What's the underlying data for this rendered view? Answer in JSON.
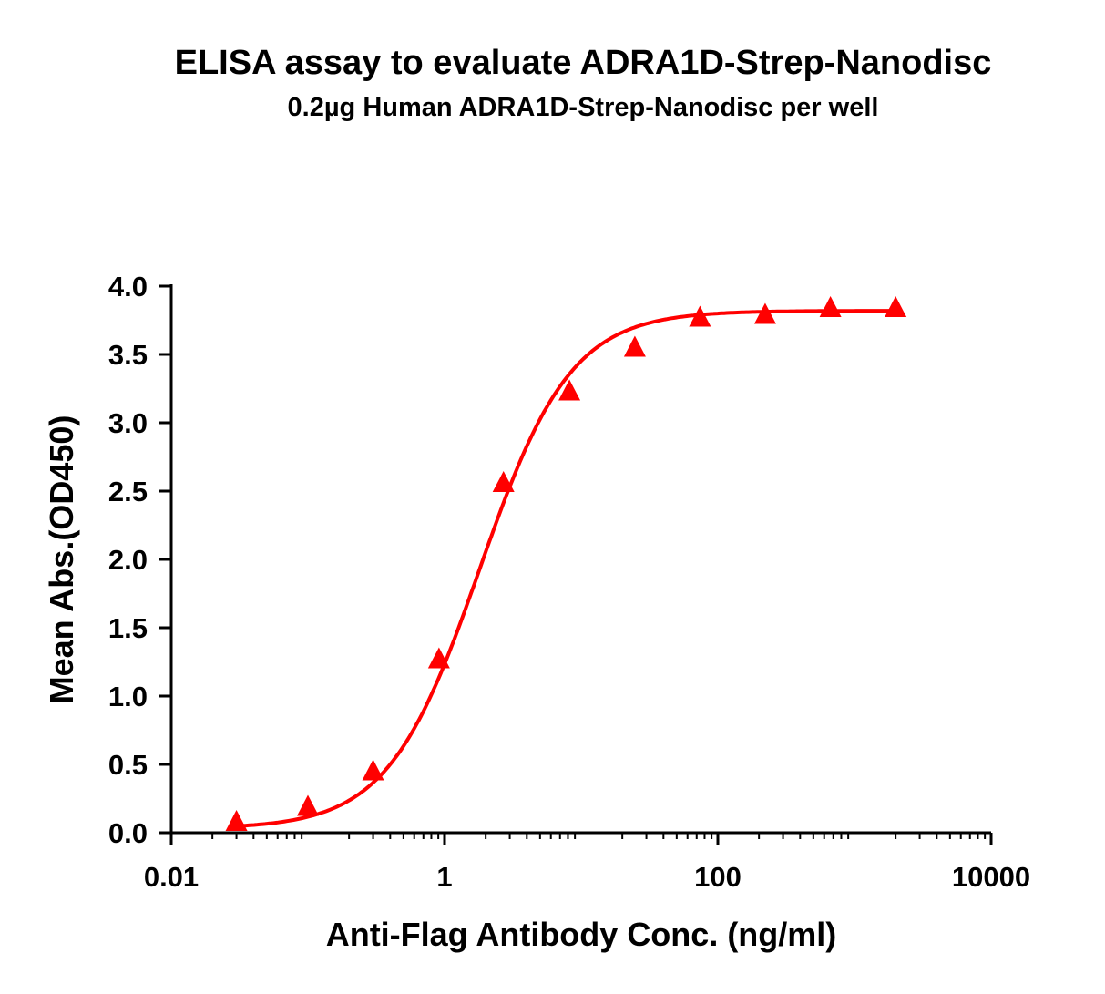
{
  "chart_data": {
    "type": "scatter",
    "title": "ELISA assay to evaluate ADRA1D-Strep-Nanodisc",
    "subtitle": "0.2µg Human ADRA1D-Strep-Nanodisc per well",
    "xlabel": "Anti-Flag Antibody Conc. (ng/ml)",
    "ylabel": "Mean Abs.(OD450)",
    "xscale": "log",
    "xlim": [
      0.01,
      10000
    ],
    "ylim": [
      0,
      4.0
    ],
    "xticks": [
      0.01,
      1,
      100,
      10000
    ],
    "xtick_labels": [
      "0.01",
      "1",
      "100",
      "10000"
    ],
    "yticks": [
      0,
      0.5,
      1.0,
      1.5,
      2.0,
      2.5,
      3.0,
      3.5,
      4.0
    ],
    "ytick_labels": [
      "0.0",
      "0.5",
      "1.0",
      "1.5",
      "2.0",
      "2.5",
      "3.0",
      "3.5",
      "4.0"
    ],
    "grid": false,
    "series": [
      {
        "name": "ADRA1D-Strep-Nanodisc",
        "color": "#ff0000",
        "marker": "triangle",
        "x": [
          0.03,
          0.1,
          0.3,
          0.91,
          2.7,
          8.2,
          24.7,
          74,
          222,
          667,
          2000
        ],
        "y": [
          0.08,
          0.19,
          0.45,
          1.27,
          2.56,
          3.23,
          3.55,
          3.77,
          3.79,
          3.84,
          3.84
        ]
      }
    ],
    "fit": {
      "model": "4PL",
      "bottom": 0.03,
      "top": 3.82,
      "ec50": 1.8,
      "hill": 1.3,
      "color": "#ff0000"
    }
  }
}
